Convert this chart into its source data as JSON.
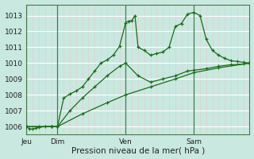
{
  "bg_color": "#c8e8e0",
  "line_color": "#1a6b1a",
  "grid_major_color": "#ffffff",
  "grid_minor_color": "#d0e8d8",
  "vline_color": "#4a7a4a",
  "xlabel": "Pression niveau de la mer( hPa )",
  "ylim": [
    1005.5,
    1013.7
  ],
  "yticks": [
    1006,
    1007,
    1008,
    1009,
    1010,
    1011,
    1012,
    1013
  ],
  "day_labels": [
    "Jeu",
    "Dim",
    "Ven",
    "Sam"
  ],
  "day_positions": [
    0,
    30,
    96,
    162
  ],
  "total_hours": 216,
  "line1_x": [
    0,
    3,
    6,
    9,
    12,
    18,
    24,
    30,
    36,
    42,
    48,
    54,
    60,
    66,
    72,
    78,
    84,
    90,
    96,
    99,
    102,
    105,
    108,
    114,
    120,
    126,
    132,
    138,
    144,
    150,
    156,
    162,
    168,
    174,
    180,
    186,
    192,
    198,
    204,
    210,
    216
  ],
  "line1_y": [
    1006.0,
    1005.85,
    1005.85,
    1005.9,
    1005.95,
    1006.0,
    1006.0,
    1006.0,
    1007.8,
    1008.05,
    1008.25,
    1008.5,
    1009.0,
    1009.5,
    1010.0,
    1010.2,
    1010.5,
    1011.05,
    1012.55,
    1012.65,
    1012.68,
    1013.0,
    1011.0,
    1010.8,
    1010.5,
    1010.6,
    1010.7,
    1011.0,
    1012.3,
    1012.5,
    1013.1,
    1013.2,
    1013.0,
    1011.5,
    1010.8,
    1010.5,
    1010.3,
    1010.15,
    1010.1,
    1010.05,
    1010.0
  ],
  "line2_x": [
    0,
    12,
    24,
    30,
    42,
    54,
    66,
    78,
    90,
    96,
    108,
    120,
    132,
    144,
    156,
    162,
    174,
    186,
    198,
    210,
    216
  ],
  "line2_y": [
    1006.0,
    1006.0,
    1006.0,
    1006.0,
    1007.0,
    1007.8,
    1008.5,
    1009.2,
    1009.8,
    1010.0,
    1009.2,
    1008.8,
    1009.0,
    1009.2,
    1009.5,
    1009.55,
    1009.65,
    1009.8,
    1009.9,
    1009.95,
    1010.0
  ],
  "line3_x": [
    0,
    24,
    30,
    54,
    78,
    96,
    120,
    144,
    162,
    186,
    216
  ],
  "line3_y": [
    1006.0,
    1006.0,
    1006.0,
    1006.8,
    1007.5,
    1008.0,
    1008.5,
    1009.0,
    1009.4,
    1009.7,
    1010.0
  ]
}
